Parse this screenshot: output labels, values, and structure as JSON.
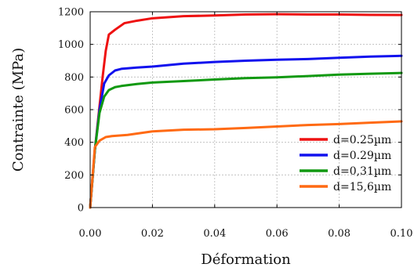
{
  "chart_data": {
    "type": "line",
    "xlabel": "Déformation",
    "ylabel": "Contrainte (MPa)",
    "xlim": [
      0,
      0.1
    ],
    "ylim": [
      0,
      1200
    ],
    "xticks": [
      "0.00",
      "0.02",
      "0.04",
      "0.06",
      "0.08",
      "0.10"
    ],
    "yticks": [
      "0",
      "200",
      "400",
      "600",
      "800",
      "1000",
      "1200"
    ],
    "grid": true,
    "legend_position": "bottom-right",
    "series": [
      {
        "name": "d=0.25µm",
        "color": "#ee1111",
        "points": [
          [
            0,
            0
          ],
          [
            0.0015,
            350
          ],
          [
            0.003,
            620
          ],
          [
            0.004,
            800
          ],
          [
            0.005,
            960
          ],
          [
            0.006,
            1060
          ],
          [
            0.008,
            1090
          ],
          [
            0.011,
            1130
          ],
          [
            0.015,
            1145
          ],
          [
            0.02,
            1160
          ],
          [
            0.03,
            1173
          ],
          [
            0.04,
            1177
          ],
          [
            0.05,
            1183
          ],
          [
            0.06,
            1185
          ],
          [
            0.07,
            1183
          ],
          [
            0.08,
            1183
          ],
          [
            0.09,
            1181
          ],
          [
            0.1,
            1180
          ]
        ]
      },
      {
        "name": "d=0.29µm",
        "color": "#1111ee",
        "points": [
          [
            0,
            0
          ],
          [
            0.0015,
            350
          ],
          [
            0.003,
            600
          ],
          [
            0.0045,
            760
          ],
          [
            0.006,
            810
          ],
          [
            0.008,
            840
          ],
          [
            0.01,
            850
          ],
          [
            0.015,
            858
          ],
          [
            0.02,
            864
          ],
          [
            0.03,
            882
          ],
          [
            0.04,
            892
          ],
          [
            0.05,
            900
          ],
          [
            0.06,
            906
          ],
          [
            0.07,
            910
          ],
          [
            0.08,
            918
          ],
          [
            0.09,
            925
          ],
          [
            0.1,
            930
          ]
        ]
      },
      {
        "name": "d=0,31µm",
        "color": "#119911",
        "points": [
          [
            0,
            0
          ],
          [
            0.0015,
            350
          ],
          [
            0.003,
            580
          ],
          [
            0.0045,
            680
          ],
          [
            0.006,
            720
          ],
          [
            0.008,
            738
          ],
          [
            0.01,
            745
          ],
          [
            0.015,
            757
          ],
          [
            0.02,
            766
          ],
          [
            0.03,
            775
          ],
          [
            0.04,
            785
          ],
          [
            0.05,
            793
          ],
          [
            0.06,
            798
          ],
          [
            0.07,
            806
          ],
          [
            0.08,
            815
          ],
          [
            0.09,
            820
          ],
          [
            0.1,
            825
          ]
        ]
      },
      {
        "name": "d=15,6µm",
        "color": "#ff6a13",
        "points": [
          [
            0,
            0
          ],
          [
            0.0015,
            370
          ],
          [
            0.003,
            410
          ],
          [
            0.005,
            432
          ],
          [
            0.007,
            438
          ],
          [
            0.012,
            445
          ],
          [
            0.02,
            467
          ],
          [
            0.03,
            477
          ],
          [
            0.04,
            480
          ],
          [
            0.05,
            488
          ],
          [
            0.06,
            497
          ],
          [
            0.07,
            506
          ],
          [
            0.08,
            512
          ],
          [
            0.09,
            520
          ],
          [
            0.1,
            528
          ]
        ]
      }
    ]
  }
}
